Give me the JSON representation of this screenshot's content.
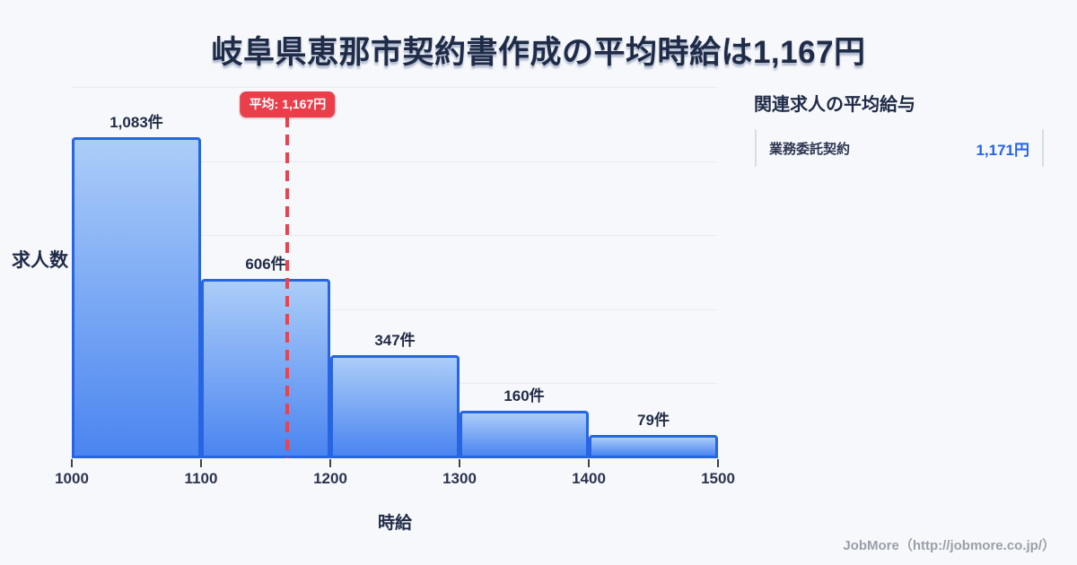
{
  "header": {
    "title": "岐阜県恵那市契約書作成の平均時給は1,167円"
  },
  "chart_data": {
    "type": "bar",
    "title": "岐阜県恵那市契約書作成の平均時給は1,167円",
    "xlabel": "時給",
    "ylabel": "求人数",
    "xlim": [
      1000,
      1500
    ],
    "ylim": [
      0,
      1250
    ],
    "grid_step": 250,
    "grid_on": true,
    "x_ticks": [
      "1000",
      "1100",
      "1200",
      "1300",
      "1400",
      "1500"
    ],
    "bins": [
      {
        "range": [
          1000,
          1100
        ],
        "count": 1083,
        "label": "1,083件"
      },
      {
        "range": [
          1100,
          1200
        ],
        "count": 606,
        "label": "606件"
      },
      {
        "range": [
          1200,
          1300
        ],
        "count": 347,
        "label": "347件"
      },
      {
        "range": [
          1300,
          1400
        ],
        "count": 160,
        "label": "160件"
      },
      {
        "range": [
          1400,
          1500
        ],
        "count": 79,
        "label": "79件"
      }
    ],
    "average": {
      "value": 1167,
      "label": "平均: 1,167円"
    },
    "colors": {
      "bar_fill_top": "#abcdf8",
      "bar_fill_bottom": "#4b85f0",
      "bar_border": "#2765e3",
      "average_red": "#ea3e4b",
      "gridline": "#e8ebf1",
      "title_navy": "#1f2b47",
      "value_blue": "#2563eb"
    }
  },
  "side_panel": {
    "heading": "関連求人の平均給与",
    "rows": [
      {
        "label": "業務委託契約",
        "value": "1,171円"
      }
    ]
  },
  "footer": {
    "attribution": "JobMore（http://jobmore.co.jp/）"
  }
}
